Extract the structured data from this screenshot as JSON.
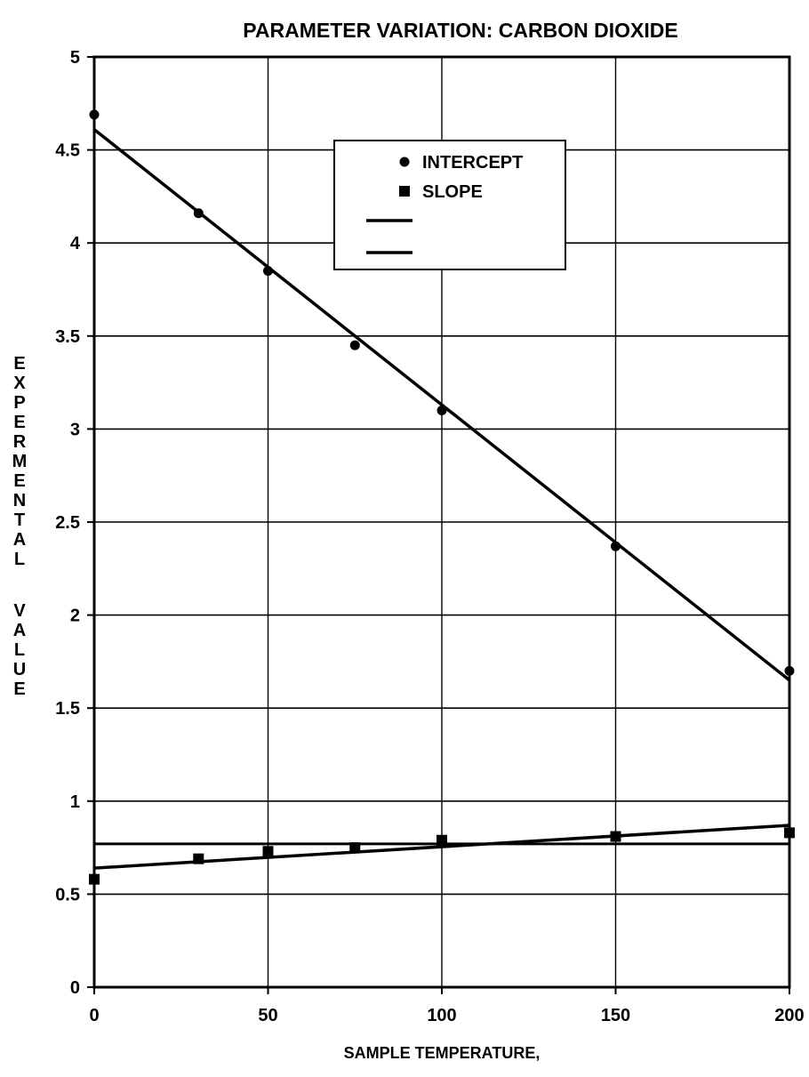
{
  "chart_data": {
    "type": "scatter",
    "title": "PARAMETER VARIATION:  CARBON DIOXIDE",
    "xlabel": "SAMPLE TEMPERATURE,",
    "ylabel": "EXPERMENTAL VALUE",
    "xlim": [
      0,
      200
    ],
    "ylim": [
      0,
      5
    ],
    "x_ticks": [
      "0",
      "50",
      "100",
      "150",
      "200"
    ],
    "y_ticks": [
      "0",
      "0.5",
      "1",
      "1.5",
      "2",
      "2.5",
      "3",
      "3.5",
      "4",
      "4.5",
      "5"
    ],
    "grid": true,
    "legend_position": "top-right",
    "series": [
      {
        "name": "INTERCEPT",
        "marker": "circle",
        "x": [
          0,
          30,
          50,
          75,
          100,
          150,
          200
        ],
        "y": [
          4.69,
          4.16,
          3.85,
          3.45,
          3.1,
          2.37,
          1.7
        ]
      },
      {
        "name": "SLOPE",
        "marker": "square",
        "x": [
          0,
          30,
          50,
          75,
          100,
          150,
          200
        ],
        "y": [
          0.58,
          0.69,
          0.73,
          0.75,
          0.79,
          0.81,
          0.83
        ]
      }
    ],
    "fit_lines": [
      {
        "series": "INTERCEPT",
        "x": [
          0,
          200
        ],
        "y": [
          4.61,
          1.65
        ]
      },
      {
        "series": "SLOPE",
        "x": [
          0,
          200
        ],
        "y": [
          0.64,
          0.87
        ]
      }
    ],
    "reference_lines": [
      {
        "axis": "y",
        "value": 0.77
      }
    ]
  }
}
